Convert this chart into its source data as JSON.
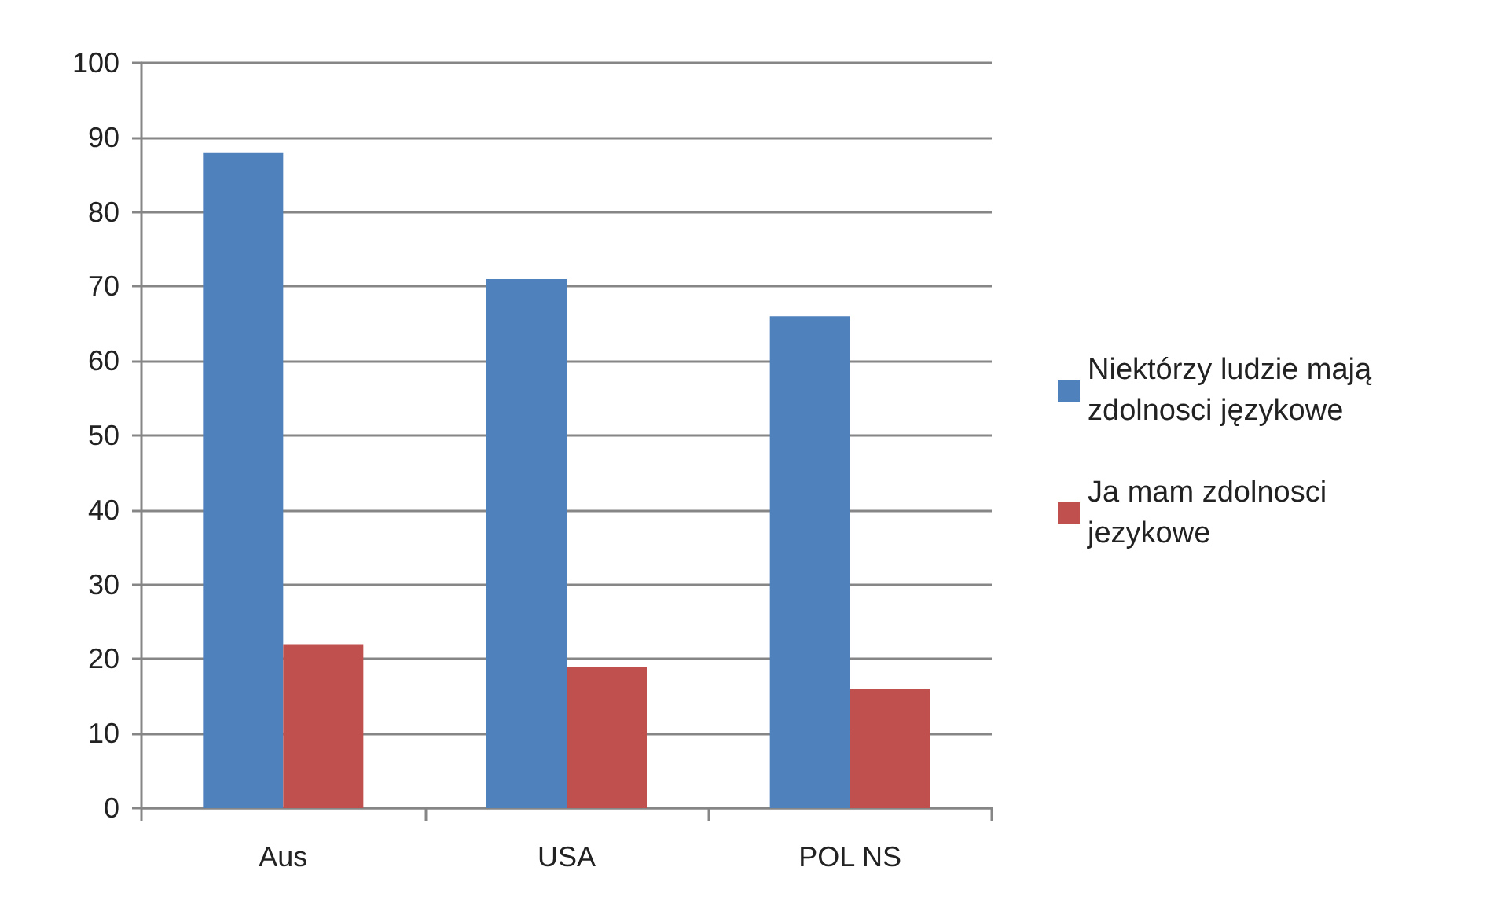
{
  "chart_data": {
    "type": "bar",
    "categories": [
      "Aus",
      "USA",
      "POL NS"
    ],
    "series": [
      {
        "name": "Niektórzy ludzie mają zdolnosci językowe",
        "color": "#4f81bd",
        "values": [
          88,
          71,
          66
        ]
      },
      {
        "name": "Ja mam zdolnosci jezykowe",
        "color": "#c0504d",
        "values": [
          22,
          19,
          16
        ]
      }
    ],
    "ylim": [
      0,
      100
    ],
    "yticks": [
      0,
      10,
      20,
      30,
      40,
      50,
      60,
      70,
      80,
      90,
      100
    ],
    "grid": "y",
    "legend": "right"
  }
}
